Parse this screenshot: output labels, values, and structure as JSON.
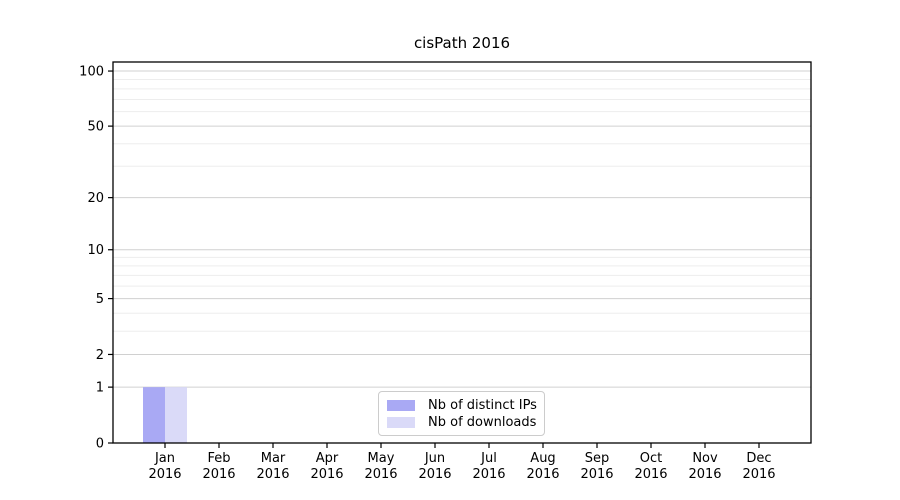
{
  "chart_data": {
    "type": "bar",
    "title": "cisPath 2016",
    "categories": [
      "Jan",
      "Feb",
      "Mar",
      "Apr",
      "May",
      "Jun",
      "Jul",
      "Aug",
      "Sep",
      "Oct",
      "Nov",
      "Dec"
    ],
    "category_year": "2016",
    "series": [
      {
        "name": "Nb of distinct IPs",
        "color": "#a9a9f4",
        "values": [
          1,
          0,
          0,
          0,
          0,
          0,
          0,
          0,
          0,
          0,
          0,
          0
        ]
      },
      {
        "name": "Nb of downloads",
        "color": "#dadaf8",
        "values": [
          1,
          0,
          0,
          0,
          0,
          0,
          0,
          0,
          0,
          0,
          0,
          0
        ]
      }
    ],
    "y_scale": "log1p",
    "ylim": [
      0,
      112
    ],
    "y_ticks": [
      0,
      1,
      2,
      5,
      10,
      20,
      50,
      100
    ],
    "y_minor_gridlines": [
      3,
      4,
      6,
      7,
      8,
      9,
      30,
      40,
      60,
      70,
      80,
      90
    ],
    "grid": true,
    "legend_position": "inside-bottom-center",
    "colors": {
      "axis": "#000000",
      "text": "#000000",
      "major_grid": "#d0d0d0",
      "minor_grid": "#ededed",
      "background": "#ffffff",
      "legend_border": "#cccccc"
    }
  }
}
